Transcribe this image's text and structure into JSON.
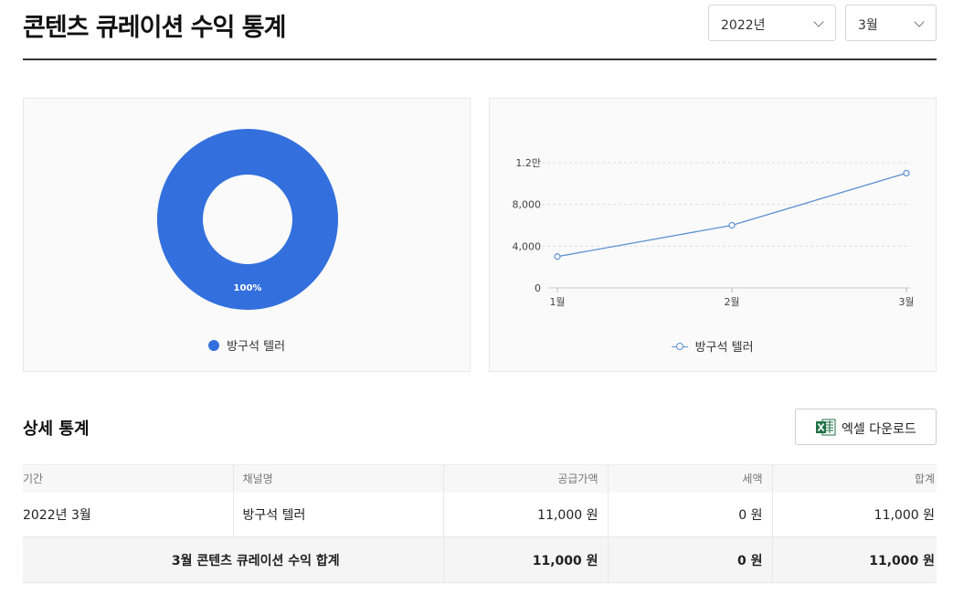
{
  "header": {
    "title": "콘텐츠 큐레이션 수익 통계",
    "year_select": {
      "value": "2022년"
    },
    "month_select": {
      "value": "3월"
    }
  },
  "charts": {
    "colors": {
      "accent": "#3370dd",
      "line": "#5b8fd0"
    }
  },
  "chart_data": [
    {
      "type": "pie",
      "variant": "donut",
      "title": "",
      "labels": [
        "방구석 텔러"
      ],
      "values": [
        100
      ],
      "data_labels": [
        "100%"
      ],
      "legend": {
        "entries": [
          "방구석 텔러"
        ],
        "placement": "bottom"
      }
    },
    {
      "type": "line",
      "title": "",
      "categories": [
        "1월",
        "2월",
        "3월"
      ],
      "series": [
        {
          "name": "방구석 텔러",
          "values": [
            3000,
            6000,
            11000
          ]
        }
      ],
      "ylim": [
        0,
        12000
      ],
      "yticks": [
        0,
        4000,
        8000,
        12000
      ],
      "ytick_labels": [
        "0",
        "4,000",
        "8,000",
        "1.2만"
      ],
      "grid": true,
      "legend": {
        "placement": "bottom"
      }
    }
  ],
  "detail": {
    "title": "상세 통계",
    "excel_button_label": "엑셀 다운로드",
    "columns": [
      "기간",
      "채널명",
      "공급가액",
      "세액",
      "합계"
    ],
    "rows": [
      [
        "2022년 3월",
        "방구석 텔러",
        "11,000 원",
        "0 원",
        "11,000 원"
      ]
    ],
    "total": {
      "label": "3월 콘텐츠 큐레이션 수익 합계",
      "supply": "11,000 원",
      "tax": "0 원",
      "sum": "11,000 원"
    }
  }
}
